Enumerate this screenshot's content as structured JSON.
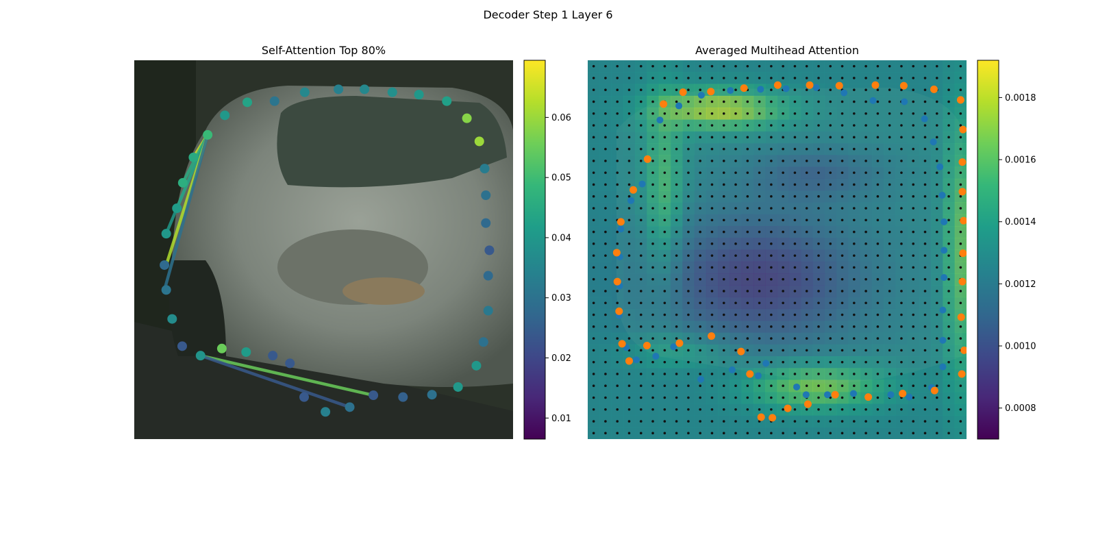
{
  "suptitle": "Decoder Step 1 Layer 6",
  "panels": {
    "left_title": "Self-Attention Top 80%",
    "right_title": "Averaged Multihead Attention"
  },
  "colors": {
    "viridis": [
      "#440154",
      "#482878",
      "#3e4989",
      "#31688e",
      "#26828e",
      "#1f9e89",
      "#35b779",
      "#6ece58",
      "#b5de2b",
      "#fde725"
    ],
    "orange": "#ff7f0e",
    "blue": "#1f77b4",
    "grid_dot": "#111111"
  },
  "chart_data": [
    {
      "type": "scatter",
      "title": "Self-Attention Top 80%",
      "xlim": [
        0,
        64
      ],
      "ylim": [
        64,
        0
      ],
      "grid": false,
      "colorbar": {
        "range": [
          0.0065,
          0.0695
        ],
        "ticks": [
          "0.01",
          "0.02",
          "0.03",
          "0.04",
          "0.05",
          "0.06"
        ],
        "tick_values": [
          0.01,
          0.02,
          0.03,
          0.04,
          0.05,
          0.06
        ]
      },
      "points": [
        {
          "x": 12.4,
          "y": 12.6,
          "v": 0.049
        },
        {
          "x": 15.3,
          "y": 9.3,
          "v": 0.04
        },
        {
          "x": 19.1,
          "y": 7.1,
          "v": 0.043
        },
        {
          "x": 23.7,
          "y": 6.9,
          "v": 0.031
        },
        {
          "x": 28.8,
          "y": 5.4,
          "v": 0.036
        },
        {
          "x": 34.5,
          "y": 4.9,
          "v": 0.034
        },
        {
          "x": 38.9,
          "y": 4.9,
          "v": 0.036
        },
        {
          "x": 43.6,
          "y": 5.4,
          "v": 0.038
        },
        {
          "x": 48.1,
          "y": 5.8,
          "v": 0.04
        },
        {
          "x": 52.8,
          "y": 6.9,
          "v": 0.042
        },
        {
          "x": 56.2,
          "y": 9.8,
          "v": 0.058
        },
        {
          "x": 58.3,
          "y": 13.7,
          "v": 0.06
        },
        {
          "x": 59.2,
          "y": 18.3,
          "v": 0.033
        },
        {
          "x": 59.4,
          "y": 22.8,
          "v": 0.03
        },
        {
          "x": 59.4,
          "y": 27.5,
          "v": 0.028
        },
        {
          "x": 60.0,
          "y": 32.1,
          "v": 0.024
        },
        {
          "x": 59.8,
          "y": 36.4,
          "v": 0.028
        },
        {
          "x": 59.8,
          "y": 42.3,
          "v": 0.032
        },
        {
          "x": 59.0,
          "y": 47.6,
          "v": 0.03
        },
        {
          "x": 57.8,
          "y": 51.6,
          "v": 0.04
        },
        {
          "x": 54.7,
          "y": 55.2,
          "v": 0.04
        },
        {
          "x": 50.3,
          "y": 56.5,
          "v": 0.03
        },
        {
          "x": 45.4,
          "y": 56.9,
          "v": 0.026
        },
        {
          "x": 40.4,
          "y": 56.6,
          "v": 0.024
        },
        {
          "x": 36.4,
          "y": 58.6,
          "v": 0.03
        },
        {
          "x": 32.3,
          "y": 59.4,
          "v": 0.034
        },
        {
          "x": 28.7,
          "y": 56.9,
          "v": 0.024
        },
        {
          "x": 26.3,
          "y": 51.2,
          "v": 0.024
        },
        {
          "x": 23.4,
          "y": 49.9,
          "v": 0.024
        },
        {
          "x": 18.9,
          "y": 49.3,
          "v": 0.041
        },
        {
          "x": 14.8,
          "y": 48.7,
          "v": 0.055
        },
        {
          "x": 11.2,
          "y": 49.9,
          "v": 0.039
        },
        {
          "x": 8.1,
          "y": 48.3,
          "v": 0.024
        },
        {
          "x": 6.4,
          "y": 43.7,
          "v": 0.037
        },
        {
          "x": 5.4,
          "y": 38.8,
          "v": 0.031
        },
        {
          "x": 5.1,
          "y": 34.6,
          "v": 0.028
        },
        {
          "x": 5.4,
          "y": 29.3,
          "v": 0.04
        },
        {
          "x": 7.2,
          "y": 25.0,
          "v": 0.041
        },
        {
          "x": 8.2,
          "y": 20.7,
          "v": 0.046
        },
        {
          "x": 10.0,
          "y": 16.4,
          "v": 0.045
        }
      ],
      "lines": [
        {
          "from": [
            10.0,
            16.4
          ],
          "to": [
            12.4,
            12.6
          ],
          "v": 0.065
        },
        {
          "from": [
            8.2,
            20.7
          ],
          "to": [
            12.4,
            12.6
          ],
          "v": 0.045
        },
        {
          "from": [
            7.2,
            25.0
          ],
          "to": [
            12.4,
            12.6
          ],
          "v": 0.055
        },
        {
          "from": [
            5.4,
            29.3
          ],
          "to": [
            12.4,
            12.6
          ],
          "v": 0.04
        },
        {
          "from": [
            5.4,
            34.6
          ],
          "to": [
            12.4,
            12.6
          ],
          "v": 0.062
        },
        {
          "from": [
            5.1,
            38.8
          ],
          "to": [
            12.4,
            12.6
          ],
          "v": 0.03
        },
        {
          "from": [
            11.2,
            49.9
          ],
          "to": [
            40.4,
            56.6
          ],
          "v": 0.055
        },
        {
          "from": [
            11.2,
            49.9
          ],
          "to": [
            36.4,
            58.6
          ],
          "v": 0.024
        }
      ]
    },
    {
      "type": "heatmap",
      "title": "Averaged Multihead Attention",
      "xlim": [
        0,
        64
      ],
      "ylim": [
        64,
        0
      ],
      "grid_points": "32x32",
      "colorbar": {
        "range": [
          0.0007,
          0.00192
        ],
        "ticks": [
          "0.0008",
          "0.0010",
          "0.0012",
          "0.0014",
          "0.0016",
          "0.0018"
        ],
        "tick_values": [
          0.0008,
          0.001,
          0.0012,
          0.0014,
          0.0016,
          0.0018
        ]
      },
      "orange_points": [
        [
          12.8,
          7.4
        ],
        [
          16.1,
          5.4
        ],
        [
          20.8,
          5.3
        ],
        [
          26.4,
          4.7
        ],
        [
          32.1,
          4.2
        ],
        [
          37.5,
          4.2
        ],
        [
          42.5,
          4.3
        ],
        [
          48.6,
          4.2
        ],
        [
          53.4,
          4.3
        ],
        [
          58.5,
          4.9
        ],
        [
          63.0,
          6.7
        ],
        [
          63.4,
          11.7
        ],
        [
          63.3,
          17.2
        ],
        [
          63.3,
          22.2
        ],
        [
          63.5,
          27.1
        ],
        [
          63.4,
          32.6
        ],
        [
          63.3,
          37.4
        ],
        [
          63.1,
          43.4
        ],
        [
          63.6,
          49.0
        ],
        [
          63.2,
          53.0
        ],
        [
          58.6,
          55.8
        ],
        [
          53.2,
          56.3
        ],
        [
          47.4,
          56.9
        ],
        [
          41.8,
          56.5
        ],
        [
          37.2,
          58.1
        ],
        [
          33.8,
          58.8
        ],
        [
          31.2,
          60.4
        ],
        [
          29.3,
          60.3
        ],
        [
          27.4,
          53.0
        ],
        [
          25.9,
          49.2
        ],
        [
          20.9,
          46.6
        ],
        [
          15.5,
          47.8
        ],
        [
          10.0,
          48.2
        ],
        [
          7.0,
          50.8
        ],
        [
          5.8,
          47.9
        ],
        [
          5.3,
          42.4
        ],
        [
          5.0,
          37.4
        ],
        [
          4.9,
          32.5
        ],
        [
          5.6,
          27.3
        ],
        [
          7.7,
          21.9
        ],
        [
          10.1,
          16.7
        ]
      ],
      "blue_points": [
        [
          12.2,
          10.1
        ],
        [
          15.4,
          7.7
        ],
        [
          19.2,
          5.9
        ],
        [
          24.1,
          5.1
        ],
        [
          29.2,
          4.9
        ],
        [
          33.5,
          4.8
        ],
        [
          38.6,
          4.6
        ],
        [
          43.3,
          5.5
        ],
        [
          48.2,
          6.8
        ],
        [
          53.5,
          7.0
        ],
        [
          56.9,
          9.9
        ],
        [
          58.4,
          13.8
        ],
        [
          59.5,
          18.0
        ],
        [
          59.9,
          22.8
        ],
        [
          60.2,
          27.3
        ],
        [
          60.2,
          32.1
        ],
        [
          60.2,
          36.7
        ],
        [
          60.0,
          42.2
        ],
        [
          60.0,
          47.3
        ],
        [
          60.0,
          51.8
        ],
        [
          58.1,
          55.3
        ],
        [
          54.3,
          56.9
        ],
        [
          51.2,
          56.5
        ],
        [
          44.9,
          56.3
        ],
        [
          40.5,
          56.5
        ],
        [
          36.9,
          56.5
        ],
        [
          35.3,
          55.2
        ],
        [
          30.1,
          51.2
        ],
        [
          28.8,
          53.3
        ],
        [
          24.4,
          52.3
        ],
        [
          19.1,
          53.9
        ],
        [
          14.5,
          48.4
        ],
        [
          11.5,
          50.0
        ],
        [
          8.2,
          50.6
        ],
        [
          6.5,
          48.5
        ],
        [
          5.3,
          43.1
        ],
        [
          5.4,
          38.1
        ],
        [
          5.4,
          33.2
        ],
        [
          5.6,
          28.5
        ],
        [
          7.3,
          23.7
        ],
        [
          9.2,
          20.9
        ]
      ]
    }
  ]
}
